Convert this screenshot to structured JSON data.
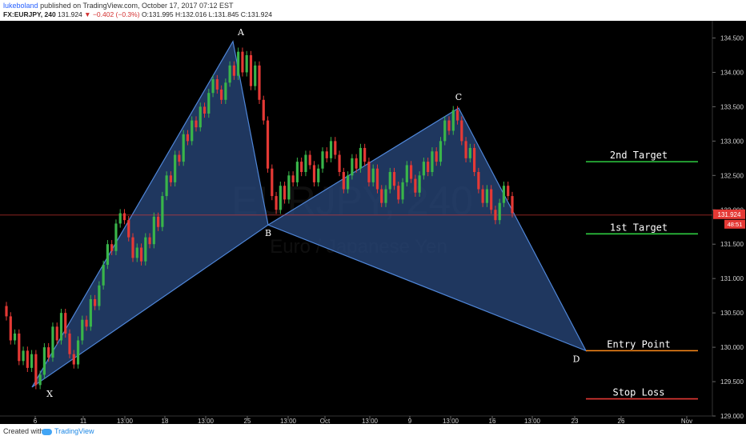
{
  "header": {
    "author": "lukeboland",
    "published": "published on TradingView.com, October 17, 2017 07:12 EST",
    "symbol": "FX:EURJPY, 240",
    "last": "131.924",
    "change": "−0.402 (−0.3%)",
    "ohlc": "O:131.995 H:132.016 L:131.845 C:131.924"
  },
  "footer": {
    "created_with": "Created with",
    "brand": "TradingView"
  },
  "colors": {
    "background": "#000000",
    "up": "#39b54a",
    "down": "#e53935",
    "pattern_fill": "#2a4a7f",
    "pattern_line": "#4f86d8",
    "target_line": "#2ecc40",
    "entry_line": "#ff8c1a",
    "stop_line": "#e53935",
    "price_tag": "#e53935"
  },
  "watermark": {
    "symbol": "EURJPY, 240",
    "description": "Euro / Japanese Yen"
  },
  "chart_data": {
    "type": "candlestick",
    "symbol": "FX:EURJPY",
    "interval": "240",
    "ylim": [
      129.0,
      134.75
    ],
    "y_ticks": [
      "134.500",
      "134.000",
      "133.500",
      "133.000",
      "132.500",
      "132.000",
      "131.500",
      "131.000",
      "130.500",
      "130.000",
      "129.500",
      "129.000"
    ],
    "x_ticks": [
      "6",
      "11",
      "13:00",
      "18",
      "13:00",
      "25",
      "13:00",
      "Oct",
      "13:00",
      "9",
      "13:00",
      "16",
      "13:00",
      "23",
      "26",
      "Nov"
    ],
    "last_price": "131.924",
    "countdown": "48:51",
    "pattern_points": [
      {
        "label": "X",
        "price": 129.42
      },
      {
        "label": "A",
        "price": 134.45
      },
      {
        "label": "B",
        "price": 131.78
      },
      {
        "label": "C",
        "price": 133.48
      },
      {
        "label": "D",
        "price": 129.95
      }
    ],
    "levels": [
      {
        "label": "2nd Target",
        "price": 132.7
      },
      {
        "label": "1st Target",
        "price": 131.65
      },
      {
        "label": "Entry Point",
        "price": 129.95
      },
      {
        "label": "Stop Loss",
        "price": 129.25
      }
    ],
    "candles": [
      [
        130.6,
        130.45
      ],
      [
        130.45,
        130.1
      ],
      [
        130.1,
        130.2
      ],
      [
        130.2,
        129.8
      ],
      [
        129.8,
        129.95
      ],
      [
        129.95,
        129.7
      ],
      [
        129.7,
        129.9
      ],
      [
        129.9,
        129.45
      ],
      [
        129.45,
        129.6
      ],
      [
        129.6,
        130.0
      ],
      [
        130.0,
        129.85
      ],
      [
        129.85,
        130.3
      ],
      [
        130.3,
        130.1
      ],
      [
        130.1,
        130.5
      ],
      [
        130.5,
        130.2
      ],
      [
        130.2,
        129.9
      ],
      [
        129.9,
        129.75
      ],
      [
        129.75,
        130.1
      ],
      [
        130.1,
        130.4
      ],
      [
        130.4,
        130.3
      ],
      [
        130.3,
        130.7
      ],
      [
        130.7,
        130.6
      ],
      [
        130.6,
        130.9
      ],
      [
        130.9,
        131.2
      ],
      [
        131.2,
        131.5
      ],
      [
        131.5,
        131.4
      ],
      [
        131.4,
        131.8
      ],
      [
        131.8,
        131.95
      ],
      [
        131.95,
        131.85
      ],
      [
        131.85,
        131.6
      ],
      [
        131.6,
        131.3
      ],
      [
        131.3,
        131.45
      ],
      [
        131.45,
        131.25
      ],
      [
        131.25,
        131.6
      ],
      [
        131.6,
        131.5
      ],
      [
        131.5,
        131.9
      ],
      [
        131.9,
        131.75
      ],
      [
        131.75,
        132.2
      ],
      [
        132.2,
        132.5
      ],
      [
        132.5,
        132.4
      ],
      [
        132.4,
        132.8
      ],
      [
        132.8,
        132.7
      ],
      [
        132.7,
        133.1
      ],
      [
        133.1,
        133.0
      ],
      [
        133.0,
        133.3
      ],
      [
        133.3,
        133.2
      ],
      [
        133.2,
        133.5
      ],
      [
        133.5,
        133.4
      ],
      [
        133.4,
        133.7
      ],
      [
        133.7,
        133.9
      ],
      [
        133.9,
        133.75
      ],
      [
        133.75,
        133.6
      ],
      [
        133.6,
        133.85
      ],
      [
        133.85,
        134.1
      ],
      [
        134.1,
        133.95
      ],
      [
        133.95,
        134.3
      ],
      [
        134.3,
        134.0
      ],
      [
        134.0,
        134.25
      ],
      [
        134.25,
        133.8
      ],
      [
        133.8,
        134.1
      ],
      [
        134.1,
        133.6
      ],
      [
        133.6,
        133.3
      ],
      [
        133.3,
        132.6
      ],
      [
        132.6,
        132.2
      ],
      [
        132.2,
        132.0
      ],
      [
        132.0,
        132.35
      ],
      [
        132.35,
        132.15
      ],
      [
        132.15,
        132.5
      ],
      [
        132.5,
        132.4
      ],
      [
        132.4,
        132.7
      ],
      [
        132.7,
        132.55
      ],
      [
        132.55,
        132.8
      ],
      [
        132.8,
        132.65
      ],
      [
        132.65,
        132.4
      ],
      [
        132.4,
        132.6
      ],
      [
        132.6,
        132.85
      ],
      [
        132.85,
        132.75
      ],
      [
        132.75,
        133.0
      ],
      [
        133.0,
        132.8
      ],
      [
        132.8,
        132.55
      ],
      [
        132.55,
        132.3
      ],
      [
        132.3,
        132.5
      ],
      [
        132.5,
        132.75
      ],
      [
        132.75,
        132.6
      ],
      [
        132.6,
        132.9
      ],
      [
        132.9,
        132.7
      ],
      [
        132.7,
        132.4
      ],
      [
        132.4,
        132.6
      ],
      [
        132.6,
        132.3
      ],
      [
        132.3,
        132.1
      ],
      [
        132.1,
        132.3
      ],
      [
        132.3,
        132.55
      ],
      [
        132.55,
        132.35
      ],
      [
        132.35,
        132.15
      ],
      [
        132.15,
        132.4
      ],
      [
        132.4,
        132.65
      ],
      [
        132.65,
        132.45
      ],
      [
        132.45,
        132.25
      ],
      [
        132.25,
        132.5
      ],
      [
        132.5,
        132.7
      ],
      [
        132.7,
        132.55
      ],
      [
        132.55,
        132.85
      ],
      [
        132.85,
        132.7
      ],
      [
        132.7,
        133.0
      ],
      [
        133.0,
        133.3
      ],
      [
        133.3,
        133.15
      ],
      [
        133.15,
        133.45
      ],
      [
        133.45,
        133.3
      ],
      [
        133.3,
        133.0
      ],
      [
        133.0,
        132.75
      ],
      [
        132.75,
        132.9
      ],
      [
        132.9,
        132.55
      ],
      [
        132.55,
        132.3
      ],
      [
        132.3,
        132.1
      ],
      [
        132.1,
        132.3
      ],
      [
        132.3,
        132.0
      ],
      [
        132.0,
        131.85
      ],
      [
        131.85,
        132.1
      ],
      [
        132.1,
        132.35
      ],
      [
        132.35,
        132.2
      ],
      [
        132.2,
        131.95
      ]
    ]
  }
}
